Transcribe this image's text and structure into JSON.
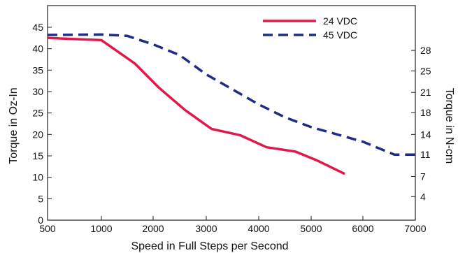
{
  "chart_data": {
    "type": "line",
    "xlabel": "Speed in Full Steps per Second",
    "ylabel": "Torque in Oz-In",
    "ylabel_right": "Torque in N-cm",
    "xlim": [
      500,
      7000
    ],
    "ylim": [
      0,
      45
    ],
    "x_ticks": [
      "500",
      "1000",
      "2000",
      "3000",
      "4000",
      "5000",
      "6000",
      "7000"
    ],
    "y_ticks": [
      "0",
      "5",
      "10",
      "15",
      "20",
      "25",
      "30",
      "35",
      "40",
      "45"
    ],
    "y2_ticks": [
      {
        "label": "4",
        "at": 5.5
      },
      {
        "label": "7",
        "at": 10.2
      },
      {
        "label": "11",
        "at": 15.3
      },
      {
        "label": "14",
        "at": 20.0
      },
      {
        "label": "18",
        "at": 25.1
      },
      {
        "label": "21",
        "at": 29.8
      },
      {
        "label": "25",
        "at": 34.8
      },
      {
        "label": "28",
        "at": 39.6
      }
    ],
    "grid": false,
    "legend_position": "top-right",
    "series": [
      {
        "name": "24 VDC",
        "color": "#e0194b",
        "style": "solid",
        "x": [
          500,
          1000,
          1650,
          2100,
          2600,
          3100,
          3650,
          4150,
          4700,
          5100,
          5650
        ],
        "y": [
          42.5,
          42,
          36.5,
          31,
          25.7,
          21.3,
          19.8,
          17,
          16,
          14,
          10.8
        ]
      },
      {
        "name": "45 VDC",
        "color": "#1f2d86",
        "style": "dashed",
        "x": [
          500,
          1000,
          1500,
          2000,
          2500,
          3000,
          3500,
          4000,
          4500,
          5000,
          5500,
          6000,
          6600,
          7000
        ],
        "y": [
          43.2,
          43.3,
          43,
          41,
          38.5,
          34,
          30.5,
          27,
          24,
          21.7,
          20,
          18.3,
          15.3,
          15.3
        ]
      }
    ]
  }
}
